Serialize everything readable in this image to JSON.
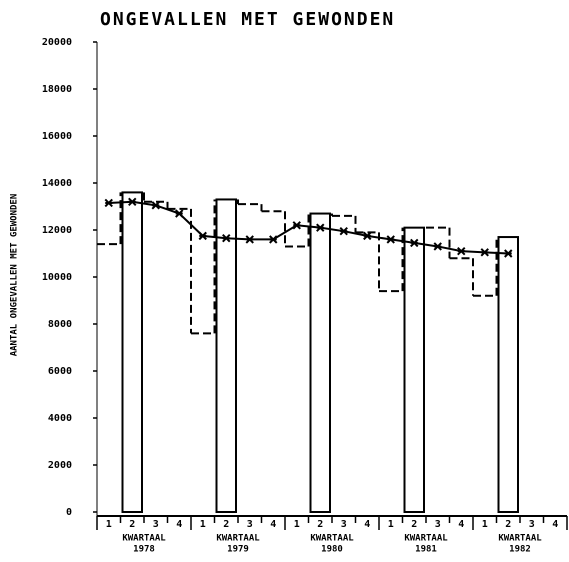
{
  "chart_data": {
    "type": "combo",
    "title": "ONGEVALLEN MET GEWONDEN",
    "y_label": "AANTAL ONGEVALLEN MET GEWONDEN",
    "categories": [
      "1",
      "2",
      "3",
      "4",
      "1",
      "2",
      "3",
      "4",
      "1",
      "2",
      "3",
      "4",
      "1",
      "2",
      "3",
      "4",
      "1",
      "2",
      "3",
      "4"
    ],
    "groups": [
      [
        "KWARTAAL",
        "1978"
      ],
      [
        "KWARTAAL",
        "1979"
      ],
      [
        "KWARTAAL",
        "1980"
      ],
      [
        "KWARTAAL",
        "1981"
      ],
      [
        "KWARTAAL",
        "1982"
      ]
    ],
    "series": [
      {
        "type": "bar",
        "color": "#000000",
        "values": [
          null,
          13600,
          null,
          null,
          null,
          13300,
          null,
          null,
          null,
          12700,
          null,
          null,
          null,
          12100,
          null,
          null,
          null,
          11700,
          null,
          null
        ]
      },
      {
        "type": "step",
        "color": "#000000",
        "values": [
          11400,
          null,
          13200,
          12900,
          7600,
          null,
          13100,
          12800,
          11300,
          null,
          12600,
          11900,
          9400,
          null,
          12100,
          10800,
          9200,
          null,
          null,
          null
        ]
      },
      {
        "type": "line",
        "color": "#000000",
        "values": [
          13150,
          13200,
          13050,
          12700,
          11750,
          11650,
          11600,
          11600,
          12200,
          12100,
          11950,
          11750,
          11600,
          11450,
          11300,
          11100,
          11050,
          11000,
          null,
          null
        ]
      }
    ],
    "ylim": [
      0,
      20000
    ],
    "yticks": [
      0,
      2000,
      4000,
      6000,
      8000,
      10000,
      12000,
      14000,
      16000,
      18000,
      20000
    ]
  }
}
